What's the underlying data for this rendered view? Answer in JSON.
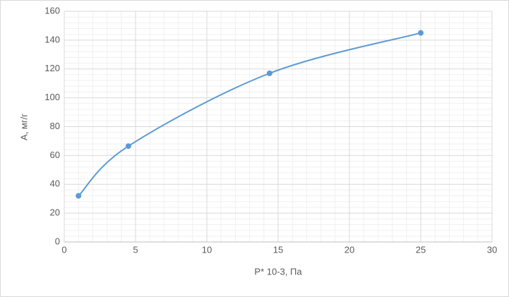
{
  "chart_data": {
    "type": "scatter",
    "smooth": true,
    "color": "#5b9bd5",
    "x_label": "P* 10-3, Па",
    "y_label": "A, мг/г",
    "x": [
      1,
      4.5,
      14.4,
      25
    ],
    "values": [
      32,
      66.5,
      117,
      145
    ],
    "xlim": [
      0,
      30
    ],
    "xticks": [
      0,
      5,
      10,
      15,
      20,
      25,
      30
    ],
    "ylim": [
      0,
      160
    ],
    "yticks": [
      0,
      20,
      40,
      60,
      80,
      100,
      120,
      140,
      160
    ],
    "grid": true,
    "minor_grid": true
  }
}
